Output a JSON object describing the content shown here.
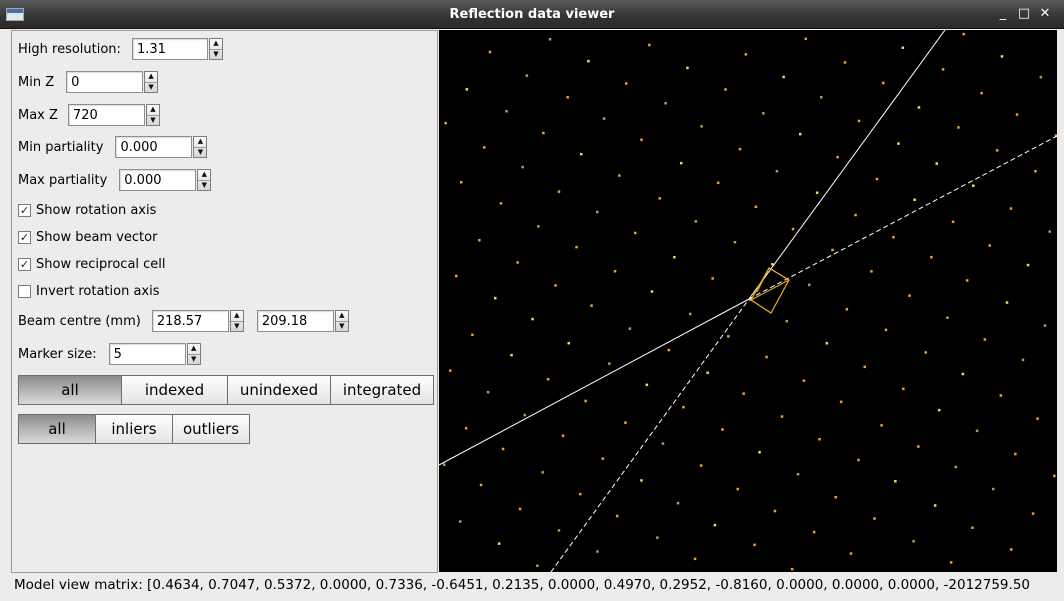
{
  "window": {
    "title": "Reflection data viewer",
    "minimize_glyph": "_",
    "maximize_glyph": "□",
    "close_glyph": "✕"
  },
  "controls": {
    "high_resolution": {
      "label": "High resolution:",
      "value": "1.31"
    },
    "min_z": {
      "label": "Min Z",
      "value": "0"
    },
    "max_z": {
      "label": "Max Z",
      "value": "720"
    },
    "min_partiality": {
      "label": "Min partiality",
      "value": "0.000"
    },
    "max_partiality": {
      "label": "Max partiality",
      "value": "0.000"
    },
    "show_rotation_axis": {
      "label": "Show rotation axis",
      "checked": true
    },
    "show_beam_vector": {
      "label": "Show beam vector",
      "checked": true
    },
    "show_reciprocal_cell": {
      "label": "Show reciprocal cell",
      "checked": true
    },
    "invert_rotation_axis": {
      "label": "Invert rotation axis",
      "checked": false
    },
    "beam_centre": {
      "label": "Beam centre (mm)",
      "x": "218.57",
      "y": "209.18"
    },
    "marker_size": {
      "label": "Marker size:",
      "value": "5"
    }
  },
  "filter_group_1": {
    "buttons": [
      "all",
      "indexed",
      "unindexed",
      "integrated"
    ],
    "selected": 0
  },
  "filter_group_2": {
    "buttons": [
      "all",
      "inliers",
      "outliers"
    ],
    "selected": 0
  },
  "colors": {
    "viewer_background": "#000000",
    "spot_orange": "#f0a030",
    "spot_yellow": "#e8e060",
    "spot_green": "#70c050",
    "axis_line": "#ffffff",
    "cell_outline": "#f0b020"
  },
  "status_bar": {
    "text": "Model view matrix: [0.4634, 0.7047, 0.5372, 0.0000, 0.7336, -0.6451, 0.2135, 0.0000, 0.4970, 0.2952, -0.8160, 0.0000, 0.0000, 0.0000, -2012759.50"
  }
}
